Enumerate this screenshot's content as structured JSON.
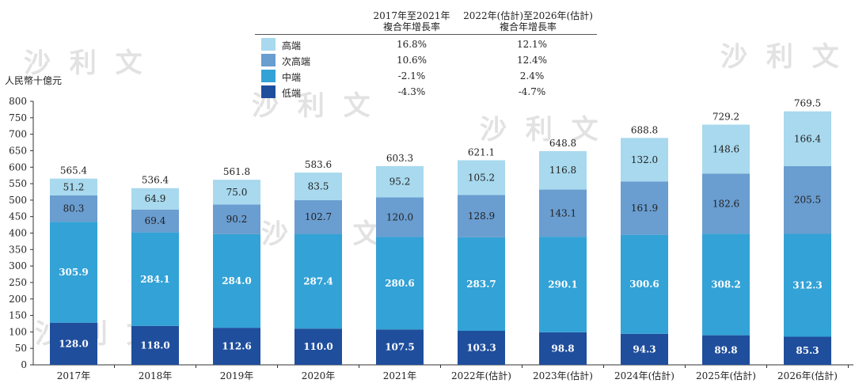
{
  "chart_data": {
    "type": "bar",
    "stacked": true,
    "ylabel": "人民幣十億元",
    "ylim": [
      0,
      800
    ],
    "yticks": [
      0,
      50,
      100,
      150,
      200,
      250,
      300,
      350,
      400,
      450,
      500,
      550,
      600,
      650,
      700,
      750,
      800
    ],
    "categories": [
      "2017年",
      "2018年",
      "2019年",
      "2020年",
      "2021年",
      "2022年(估計)",
      "2023年(估計)",
      "2024年(估計)",
      "2025年(估計)",
      "2026年(估計)"
    ],
    "totals": [
      "565.4",
      "536.4",
      "561.8",
      "583.6",
      "603.3",
      "621.1",
      "648.8",
      "688.8",
      "729.2",
      "769.5"
    ],
    "series": [
      {
        "name": "低端",
        "color": "#1f4e9c",
        "values": [
          128.0,
          118.0,
          112.6,
          110.0,
          107.5,
          103.3,
          98.8,
          94.3,
          89.8,
          85.3
        ]
      },
      {
        "name": "中端",
        "color": "#33a2d6",
        "values": [
          305.9,
          284.1,
          284.0,
          287.4,
          280.6,
          283.7,
          290.1,
          300.6,
          308.2,
          312.3
        ]
      },
      {
        "name": "次高端",
        "color": "#6a9dd0",
        "values": [
          80.3,
          69.4,
          90.2,
          102.7,
          120.0,
          128.9,
          143.1,
          161.9,
          182.6,
          205.5
        ]
      },
      {
        "name": "高端",
        "color": "#a8d9ee",
        "values": [
          51.2,
          64.9,
          75.0,
          83.5,
          95.2,
          105.2,
          116.8,
          132.0,
          148.6,
          166.4
        ]
      }
    ]
  },
  "table": {
    "header1": [
      "2017年至2021年",
      "複合年增長率"
    ],
    "header2": [
      "2022年(估計)至2026年(估計)",
      "複合年增長率"
    ],
    "rows": [
      {
        "label": "高端",
        "cagr1": "16.8%",
        "cagr2": "12.1%",
        "color": "#a8d9ee"
      },
      {
        "label": "次高端",
        "cagr1": "10.6%",
        "cagr2": "12.4%",
        "color": "#6a9dd0"
      },
      {
        "label": "中端",
        "cagr1": "-2.1%",
        "cagr2": "2.4%",
        "color": "#33a2d6"
      },
      {
        "label": "低端",
        "cagr1": "-4.3%",
        "cagr2": "-4.7%",
        "color": "#1f4e9c"
      }
    ]
  },
  "watermark": "沙 利 文"
}
